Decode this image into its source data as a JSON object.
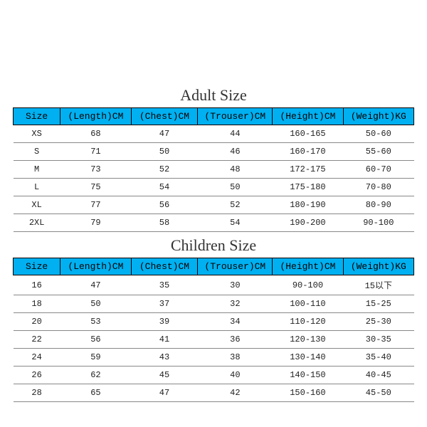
{
  "colors": {
    "header_bg": "#00b0f0",
    "border": "#000000",
    "row_border": "#888888",
    "text": "#222222",
    "title": "#333333",
    "background": "#ffffff"
  },
  "fonts": {
    "title_size": 22,
    "header_size": 13,
    "cell_size": 12
  },
  "adult": {
    "title": "Adult Size",
    "columns": [
      "Size",
      "(Length)CM",
      "(Chest)CM",
      "(Trouser)CM",
      "(Height)CM",
      "(Weight)KG"
    ],
    "rows": [
      [
        "XS",
        "68",
        "47",
        "44",
        "160-165",
        "50-60"
      ],
      [
        "S",
        "71",
        "50",
        "46",
        "160-170",
        "55-60"
      ],
      [
        "M",
        "73",
        "52",
        "48",
        "172-175",
        "60-70"
      ],
      [
        "L",
        "75",
        "54",
        "50",
        "175-180",
        "70-80"
      ],
      [
        "XL",
        "77",
        "56",
        "52",
        "180-190",
        "80-90"
      ],
      [
        "2XL",
        "79",
        "58",
        "54",
        "190-200",
        "90-100"
      ]
    ]
  },
  "children": {
    "title": "Children Size",
    "columns": [
      "Size",
      "(Length)CM",
      "(Chest)CM",
      "(Trouser)CM",
      "(Height)CM",
      "(Weight)KG"
    ],
    "rows": [
      [
        "16",
        "47",
        "35",
        "30",
        "90-100",
        "15以下"
      ],
      [
        "18",
        "50",
        "37",
        "32",
        "100-110",
        "15-25"
      ],
      [
        "20",
        "53",
        "39",
        "34",
        "110-120",
        "25-30"
      ],
      [
        "22",
        "56",
        "41",
        "36",
        "120-130",
        "30-35"
      ],
      [
        "24",
        "59",
        "43",
        "38",
        "130-140",
        "35-40"
      ],
      [
        "26",
        "62",
        "45",
        "40",
        "140-150",
        "40-45"
      ],
      [
        "28",
        "65",
        "47",
        "42",
        "150-160",
        "45-50"
      ]
    ]
  }
}
